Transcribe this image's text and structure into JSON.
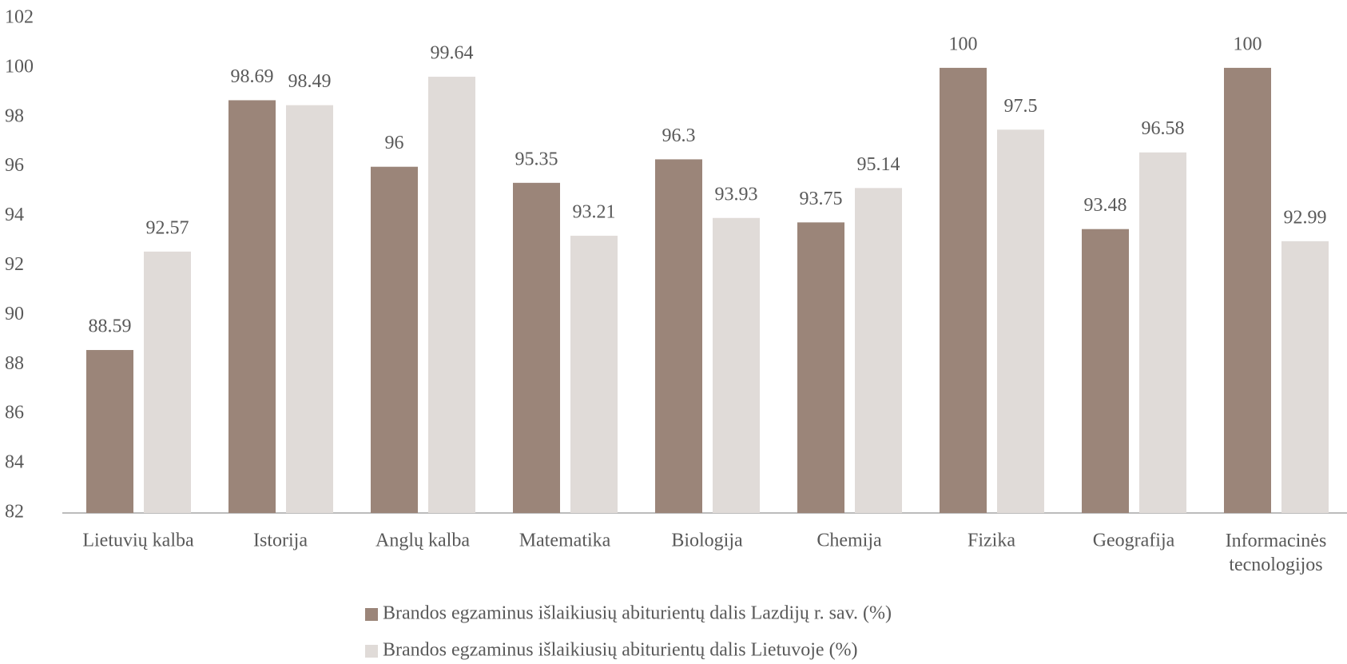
{
  "chart_data": {
    "type": "bar",
    "categories": [
      "Lietuvių kalba",
      "Istorija",
      "Anglų kalba",
      "Matematika",
      "Biologija",
      "Chemija",
      "Fizika",
      "Geografija",
      "Informacinės\ntecnologijos"
    ],
    "series": [
      {
        "name": "Brandos egzaminus išlaikiusių abiturientų dalis Lazdijų r. sav. (%)",
        "color": "#9b8579",
        "values": [
          88.59,
          98.69,
          96,
          95.35,
          96.3,
          93.75,
          100,
          93.48,
          100
        ]
      },
      {
        "name": "Brandos egzaminus išlaikiusių abiturientų dalis Lietuvoje (%)",
        "color": "#e0dbd8",
        "values": [
          92.57,
          98.49,
          99.64,
          93.21,
          93.93,
          95.14,
          97.5,
          96.58,
          92.99
        ]
      }
    ],
    "ylim": [
      82,
      102
    ],
    "yticks": [
      82,
      84,
      86,
      88,
      90,
      92,
      94,
      96,
      98,
      100,
      102
    ],
    "grid": false,
    "legend": "bottom"
  }
}
